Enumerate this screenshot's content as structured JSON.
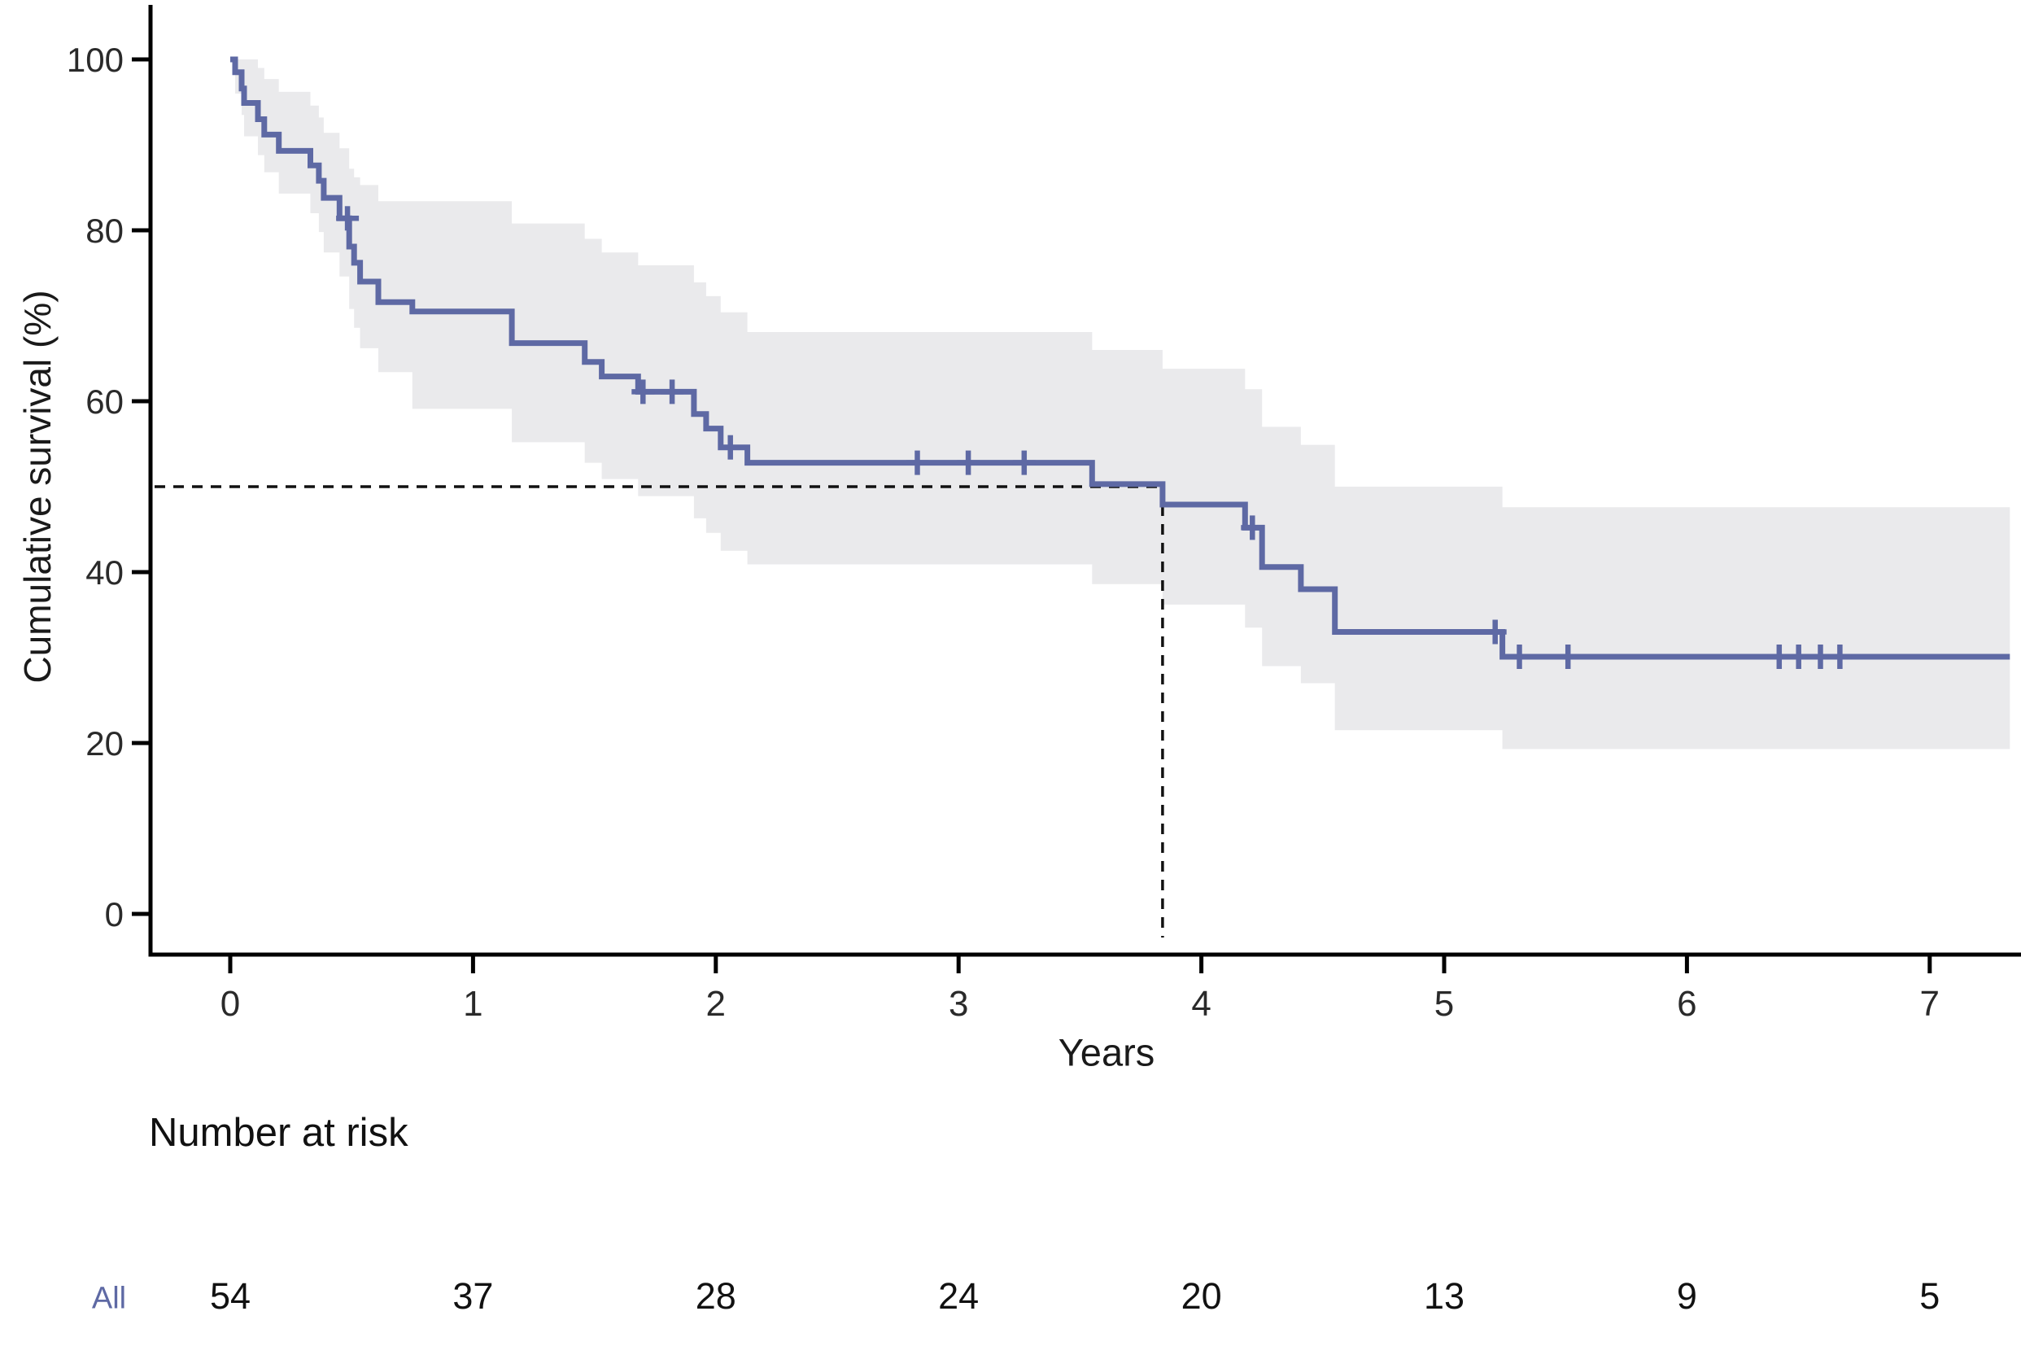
{
  "figure": {
    "background": "#ffffff",
    "accent_color": "#5e69a4",
    "ci_band_color": "#eaeaec",
    "axis_color": "#000000",
    "tick_label_color": "#2a2a2a",
    "median_line_color": "#111111"
  },
  "chart_data": {
    "type": "line",
    "subtype": "kaplan-meier-step",
    "title": "",
    "xlabel": "Years",
    "ylabel": "Cumulative survival (%)",
    "x_ticks": [
      0,
      1,
      2,
      3,
      4,
      5,
      6,
      7
    ],
    "x_tick_labels": [
      "0",
      "1",
      "2",
      "3",
      "4",
      "5",
      "6",
      "7"
    ],
    "y_ticks": [
      0,
      20,
      40,
      60,
      80,
      100
    ],
    "y_tick_labels": [
      "0",
      "20",
      "40",
      "60",
      "80",
      "100"
    ],
    "xlim": [
      -0.33,
      7.37
    ],
    "ylim": [
      0,
      100
    ],
    "grid": false,
    "legend": "none",
    "series": [
      {
        "name": "All",
        "color": "#5e69a4",
        "ci_color": "#eaeaec",
        "steps": [
          [
            0.0,
            100.0
          ],
          [
            0.02,
            98.5
          ],
          [
            0.047,
            96.6
          ],
          [
            0.057,
            94.9
          ],
          [
            0.114,
            93.0
          ],
          [
            0.14,
            91.2
          ],
          [
            0.2,
            89.3
          ],
          [
            0.33,
            87.6
          ],
          [
            0.365,
            85.8
          ],
          [
            0.385,
            83.8
          ],
          [
            0.45,
            81.4
          ],
          [
            0.49,
            78.1
          ],
          [
            0.51,
            76.2
          ],
          [
            0.535,
            74.0
          ],
          [
            0.61,
            71.6
          ],
          [
            0.75,
            70.5
          ],
          [
            1.16,
            66.8
          ],
          [
            1.46,
            64.6
          ],
          [
            1.53,
            62.9
          ],
          [
            1.68,
            61.1
          ],
          [
            1.91,
            58.5
          ],
          [
            1.96,
            56.8
          ],
          [
            2.02,
            54.6
          ],
          [
            2.13,
            52.8
          ],
          [
            3.55,
            50.3
          ],
          [
            3.84,
            47.9
          ],
          [
            4.18,
            45.2
          ],
          [
            4.25,
            40.6
          ],
          [
            4.41,
            38.0
          ],
          [
            4.55,
            33.0
          ],
          [
            5.24,
            30.1
          ],
          [
            7.33,
            30.1
          ]
        ],
        "censors": [
          [
            0.483,
            81.4
          ],
          [
            1.7,
            61.1
          ],
          [
            1.82,
            61.1
          ],
          [
            2.06,
            54.6
          ],
          [
            2.83,
            52.8
          ],
          [
            3.04,
            52.8
          ],
          [
            3.27,
            52.8
          ],
          [
            4.21,
            45.2
          ],
          [
            5.21,
            33.0
          ],
          [
            5.31,
            30.1
          ],
          [
            5.51,
            30.1
          ],
          [
            6.38,
            30.1
          ],
          [
            6.46,
            30.1
          ],
          [
            6.55,
            30.1
          ],
          [
            6.63,
            30.1
          ]
        ],
        "ci": [
          [
            0.0,
            100.0,
            100.0
          ],
          [
            0.02,
            100.0,
            96.0
          ],
          [
            0.047,
            100.0,
            93.5
          ],
          [
            0.057,
            100.0,
            91.0
          ],
          [
            0.114,
            99.0,
            88.8
          ],
          [
            0.14,
            97.7,
            86.8
          ],
          [
            0.2,
            96.2,
            84.3
          ],
          [
            0.33,
            94.6,
            82.0
          ],
          [
            0.365,
            93.2,
            79.8
          ],
          [
            0.385,
            91.4,
            77.4
          ],
          [
            0.45,
            89.6,
            74.6
          ],
          [
            0.49,
            87.2,
            70.8
          ],
          [
            0.51,
            86.2,
            68.6
          ],
          [
            0.535,
            85.3,
            66.2
          ],
          [
            0.61,
            83.4,
            63.4
          ],
          [
            0.75,
            83.4,
            59.1
          ],
          [
            1.16,
            80.8,
            55.2
          ],
          [
            1.46,
            79.0,
            52.8
          ],
          [
            1.53,
            77.4,
            50.9
          ],
          [
            1.68,
            75.9,
            48.9
          ],
          [
            1.91,
            73.9,
            46.3
          ],
          [
            1.96,
            72.3,
            44.6
          ],
          [
            2.02,
            70.4,
            42.5
          ],
          [
            2.13,
            68.1,
            40.9
          ],
          [
            3.55,
            66.0,
            38.6
          ],
          [
            3.84,
            63.8,
            36.2
          ],
          [
            4.18,
            61.4,
            33.5
          ],
          [
            4.25,
            57.0,
            29.0
          ],
          [
            4.41,
            54.9,
            27.0
          ],
          [
            4.55,
            50.0,
            21.5
          ],
          [
            5.24,
            47.6,
            19.3
          ],
          [
            7.33,
            47.6,
            19.3
          ]
        ]
      }
    ],
    "median_annotation": {
      "time_years": 3.84,
      "survival_pct": 50,
      "style": "dashed"
    },
    "risk_table": {
      "title": "Number at risk",
      "row_label": "All",
      "times": [
        0,
        1,
        2,
        3,
        4,
        5,
        6,
        7
      ],
      "counts": [
        54,
        37,
        28,
        24,
        20,
        13,
        9,
        5
      ]
    }
  }
}
